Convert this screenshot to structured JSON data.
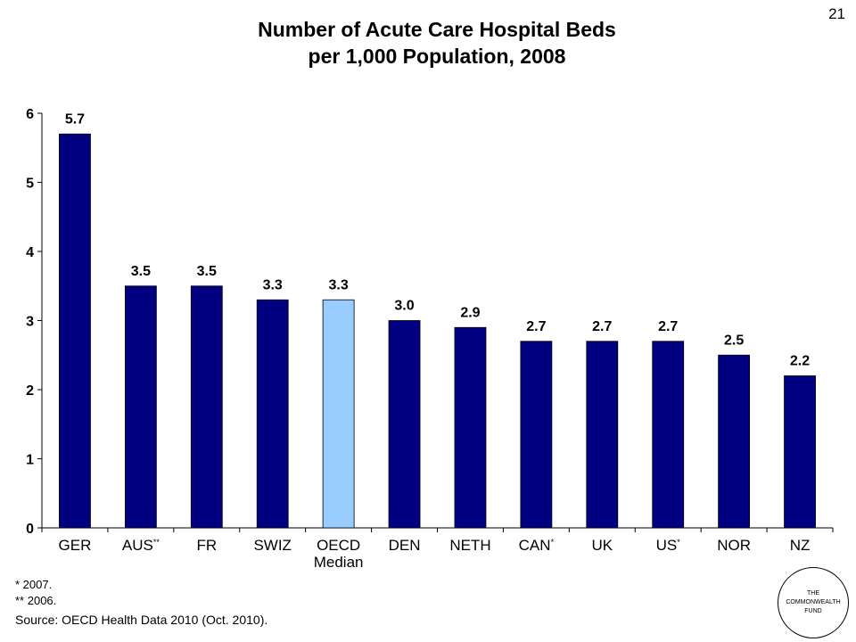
{
  "slide": {
    "title_line1": "Number of Acute Care Hospital Beds",
    "title_line2": "per 1,000 Population, 2008",
    "page_number": "21"
  },
  "chart_data": {
    "type": "bar",
    "title": "Number of Acute Care Hospital Beds per 1,000 Population, 2008",
    "categories": [
      "GER",
      "AUS**",
      "FR",
      "SWIZ",
      "OECD Median",
      "DEN",
      "NETH",
      "CAN*",
      "UK",
      "US*",
      "NOR",
      "NZ"
    ],
    "category_labels": [
      {
        "main": "GER",
        "sup": ""
      },
      {
        "main": "AUS",
        "sup": "**"
      },
      {
        "main": "FR",
        "sup": ""
      },
      {
        "main": "SWIZ",
        "sup": ""
      },
      {
        "main": "OECD",
        "line2": "Median",
        "sup": ""
      },
      {
        "main": "DEN",
        "sup": ""
      },
      {
        "main": "NETH",
        "sup": ""
      },
      {
        "main": "CAN",
        "sup": "*"
      },
      {
        "main": "UK",
        "sup": ""
      },
      {
        "main": "US",
        "sup": "*"
      },
      {
        "main": "NOR",
        "sup": ""
      },
      {
        "main": "NZ",
        "sup": ""
      }
    ],
    "values": [
      5.7,
      3.5,
      3.5,
      3.3,
      3.3,
      3.0,
      2.9,
      2.7,
      2.7,
      2.7,
      2.5,
      2.2
    ],
    "data_labels": [
      "5.7",
      "3.5",
      "3.5",
      "3.3",
      "3.3",
      "3.0",
      "2.9",
      "2.7",
      "2.7",
      "2.7",
      "2.5",
      "2.2"
    ],
    "highlight_index": 4,
    "bar_color": "#000080",
    "highlight_color": "#99ccff",
    "ylim": [
      0,
      6
    ],
    "yticks": [
      0,
      1,
      2,
      3,
      4,
      5,
      6
    ],
    "grid": false,
    "xlabel": "",
    "ylabel": ""
  },
  "footnotes": {
    "note1": "* 2007.",
    "note2": "** 2006.",
    "source": "Source: OECD Health Data 2010 (Oct. 2010)."
  },
  "logo": {
    "line1": "THE",
    "line2": "COMMONWEALTH",
    "line3": "FUND"
  }
}
